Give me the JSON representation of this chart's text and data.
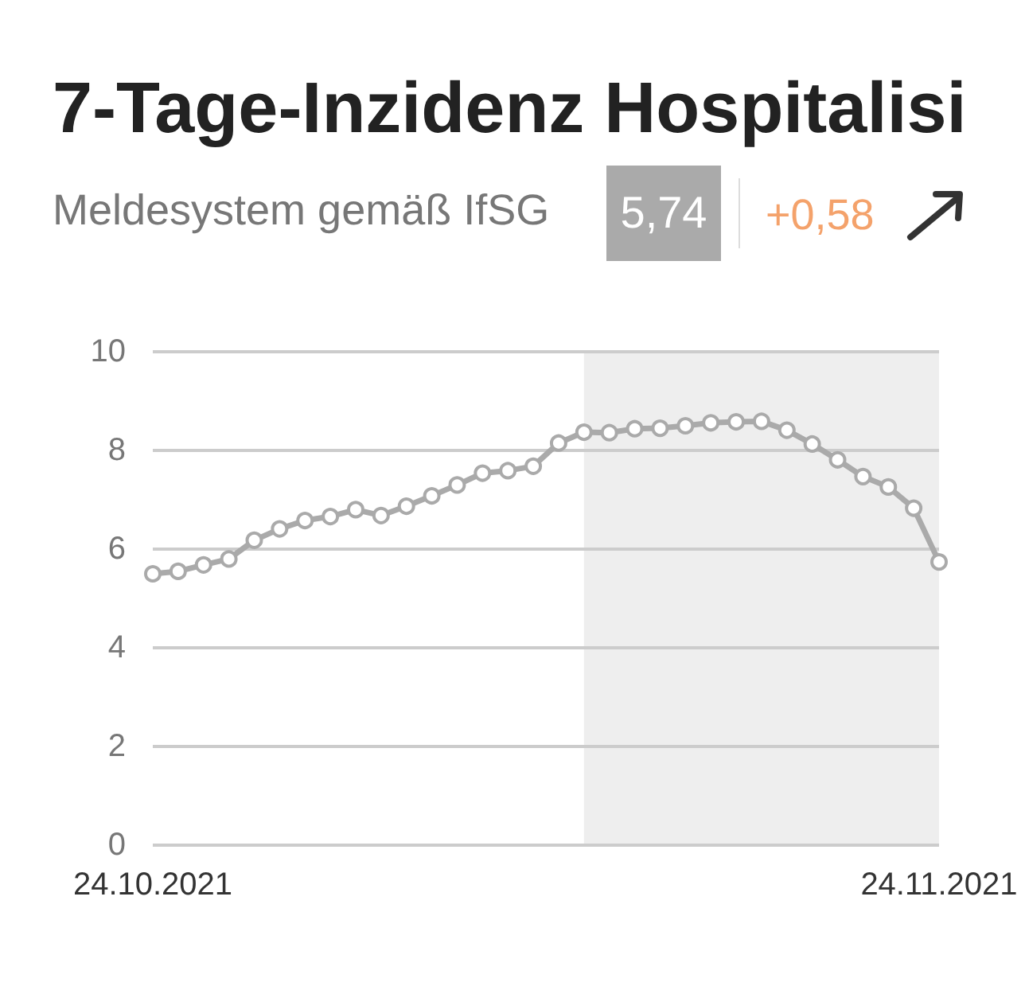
{
  "chart_data": {
    "type": "line",
    "title": "7-Tage-Inzidenz Hospitalisi",
    "subtitle": "Meldesystem gemäß IfSG",
    "annotations": [
      "5,74",
      "+0,58"
    ],
    "x": [
      "2021-10-24",
      "2021-10-25",
      "2021-10-26",
      "2021-10-27",
      "2021-10-28",
      "2021-10-29",
      "2021-10-30",
      "2021-10-31",
      "2021-11-01",
      "2021-11-02",
      "2021-11-03",
      "2021-11-04",
      "2021-11-05",
      "2021-11-06",
      "2021-11-07",
      "2021-11-08",
      "2021-11-09",
      "2021-11-10",
      "2021-11-11",
      "2021-11-12",
      "2021-11-13",
      "2021-11-14",
      "2021-11-15",
      "2021-11-16",
      "2021-11-17",
      "2021-11-18",
      "2021-11-19",
      "2021-11-20",
      "2021-11-21",
      "2021-11-22",
      "2021-11-23",
      "2021-11-24"
    ],
    "values": [
      5.5,
      5.55,
      5.68,
      5.8,
      6.18,
      6.41,
      6.58,
      6.66,
      6.8,
      6.68,
      6.87,
      7.08,
      7.3,
      7.54,
      7.59,
      7.68,
      8.15,
      8.37,
      8.36,
      8.44,
      8.45,
      8.5,
      8.56,
      8.58,
      8.59,
      8.41,
      8.13,
      7.81,
      7.47,
      7.26,
      6.83,
      5.74
    ],
    "color": "#aaaaaa",
    "marker": "circle",
    "line_style": "solid",
    "xlim": [
      "2021-10-24",
      "2021-11-24"
    ],
    "xticks": [
      {
        "value": "2021-10-24",
        "label": "24.10.2021"
      },
      {
        "value": "2021-11-24",
        "label": "24.11.2021"
      }
    ],
    "ylim": [
      0,
      10
    ],
    "yticks": [
      0,
      2,
      4,
      6,
      8,
      10
    ],
    "grid": "y",
    "bands": [
      {
        "axis": "x",
        "from": "2021-11-10",
        "to": "2021-11-24",
        "color": "#eeeeee"
      }
    ]
  }
}
